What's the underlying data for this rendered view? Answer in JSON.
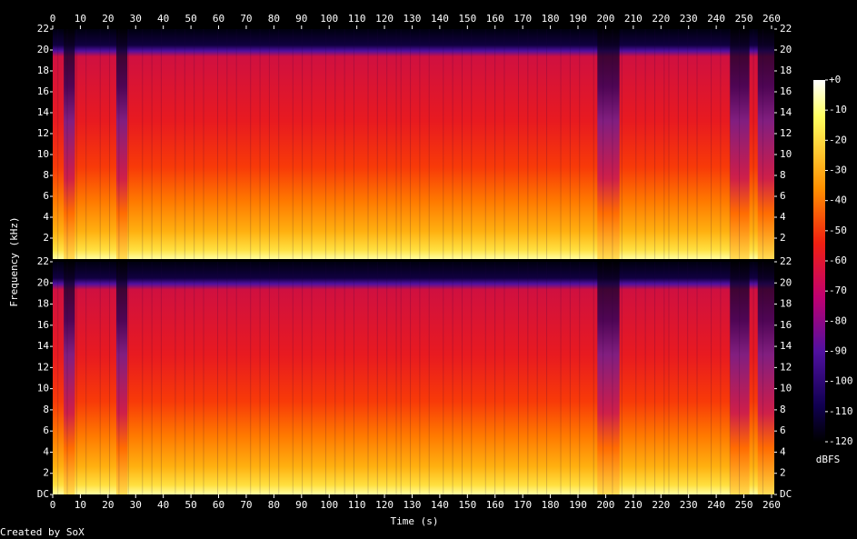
{
  "chart_data": {
    "type": "spectrogram",
    "x_label": "Time (s)",
    "y_label": "Frequency (kHz)",
    "xlim": [
      0,
      261
    ],
    "xticks": [
      0,
      10,
      20,
      30,
      40,
      50,
      60,
      70,
      80,
      90,
      100,
      110,
      120,
      130,
      140,
      150,
      160,
      170,
      180,
      190,
      200,
      210,
      220,
      230,
      240,
      250,
      260
    ],
    "channels": [
      {
        "ylim": [
          0,
          22
        ],
        "yticks": [
          2,
          4,
          6,
          8,
          10,
          12,
          14,
          16,
          18,
          20,
          22
        ]
      },
      {
        "ylim": [
          0,
          22
        ],
        "yticks": [
          {
            "value": 0,
            "label": "DC"
          },
          2,
          4,
          6,
          8,
          10,
          12,
          14,
          16,
          18,
          20,
          22
        ]
      }
    ],
    "colorbar": {
      "label": "dBFS",
      "clim": [
        -120,
        0
      ],
      "ticks": [
        {
          "value": 0,
          "label": "+0"
        },
        -10,
        -20,
        -30,
        -40,
        -50,
        -60,
        -70,
        -80,
        -90,
        -100,
        -110,
        -120
      ]
    },
    "credit": "Created by SoX"
  }
}
